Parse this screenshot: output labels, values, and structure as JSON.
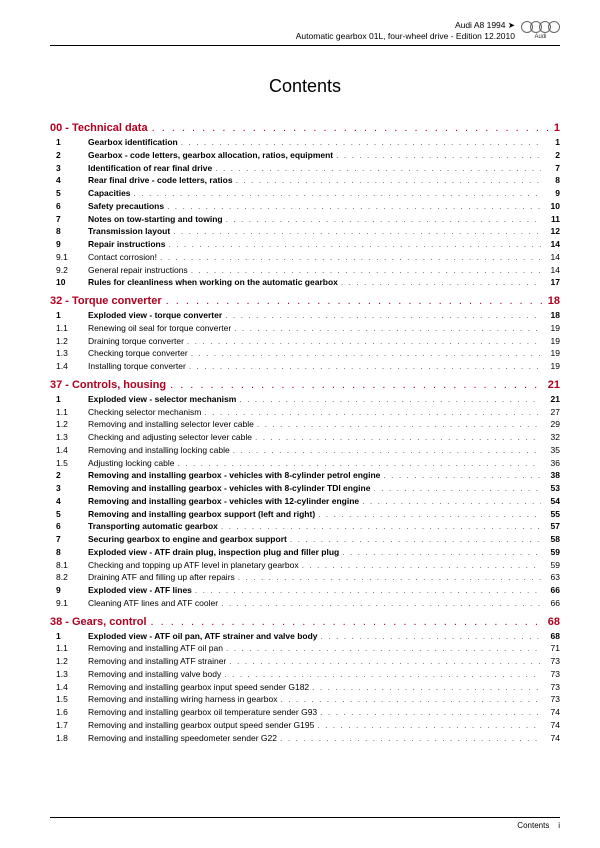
{
  "header": {
    "line1": "Audi A8 1994 ➤",
    "line2": "Automatic gearbox 01L, four-wheel drive - Edition 12.2010",
    "logo_text": "Audi"
  },
  "title": "Contents",
  "dots": ". . . . . . . . . . . . . . . . . . . . . . . . . . . . . . . . . . . . . . . . . . . . . . . . . . . . . . . . . . . . . . . . . . . . . . . . . . . . . . . . . . . . . . . . . . . . . . . . . . . . . . . . . . . . . . . .",
  "sections": [
    {
      "num": "00 -",
      "label": "Technical data",
      "page": "1",
      "color": "#b00020",
      "rows": [
        {
          "n": "1",
          "t": "Gearbox identification",
          "p": "1",
          "b": true
        },
        {
          "n": "2",
          "t": "Gearbox - code letters, gearbox allocation, ratios, equipment",
          "p": "2",
          "b": true
        },
        {
          "n": "3",
          "t": "Identification of rear final drive",
          "p": "7",
          "b": true
        },
        {
          "n": "4",
          "t": "Rear final drive - code letters, ratios",
          "p": "8",
          "b": true
        },
        {
          "n": "5",
          "t": "Capacities",
          "p": "9",
          "b": true
        },
        {
          "n": "6",
          "t": "Safety precautions",
          "p": "10",
          "b": true
        },
        {
          "n": "7",
          "t": "Notes on tow-starting and towing",
          "p": "11",
          "b": true
        },
        {
          "n": "8",
          "t": "Transmission layout",
          "p": "12",
          "b": true
        },
        {
          "n": "9",
          "t": "Repair instructions",
          "p": "14",
          "b": true
        },
        {
          "n": "9.1",
          "t": "Contact corrosion!",
          "p": "14",
          "b": false
        },
        {
          "n": "9.2",
          "t": "General repair instructions",
          "p": "14",
          "b": false
        },
        {
          "n": "10",
          "t": "Rules for cleanliness when working on the automatic gearbox",
          "p": "17",
          "b": true
        }
      ]
    },
    {
      "num": "32 -",
      "label": "Torque converter",
      "page": "18",
      "color": "#b00020",
      "rows": [
        {
          "n": "1",
          "t": "Exploded view - torque converter",
          "p": "18",
          "b": true
        },
        {
          "n": "1.1",
          "t": "Renewing oil seal for torque converter",
          "p": "19",
          "b": false
        },
        {
          "n": "1.2",
          "t": "Draining torque converter",
          "p": "19",
          "b": false
        },
        {
          "n": "1.3",
          "t": "Checking torque converter",
          "p": "19",
          "b": false
        },
        {
          "n": "1.4",
          "t": "Installing torque converter",
          "p": "19",
          "b": false
        }
      ]
    },
    {
      "num": "37 -",
      "label": "Controls, housing",
      "page": "21",
      "color": "#b00020",
      "rows": [
        {
          "n": "1",
          "t": "Exploded view - selector mechanism",
          "p": "21",
          "b": true
        },
        {
          "n": "1.1",
          "t": "Checking selector mechanism",
          "p": "27",
          "b": false
        },
        {
          "n": "1.2",
          "t": "Removing and installing selector lever cable",
          "p": "29",
          "b": false
        },
        {
          "n": "1.3",
          "t": "Checking and adjusting selector lever cable",
          "p": "32",
          "b": false
        },
        {
          "n": "1.4",
          "t": "Removing and installing locking cable",
          "p": "35",
          "b": false
        },
        {
          "n": "1.5",
          "t": "Adjusting locking cable",
          "p": "36",
          "b": false
        },
        {
          "n": "2",
          "t": "Removing and installing gearbox - vehicles with 8-cylinder petrol engine",
          "p": "38",
          "b": true
        },
        {
          "n": "3",
          "t": "Removing and installing gearbox - vehicles with 8-cylinder TDI engine",
          "p": "53",
          "b": true
        },
        {
          "n": "4",
          "t": "Removing and installing gearbox - vehicles with 12-cylinder engine",
          "p": "54",
          "b": true
        },
        {
          "n": "5",
          "t": "Removing and installing gearbox support (left and right)",
          "p": "55",
          "b": true
        },
        {
          "n": "6",
          "t": "Transporting automatic gearbox",
          "p": "57",
          "b": true
        },
        {
          "n": "7",
          "t": "Securing gearbox to engine and gearbox support",
          "p": "58",
          "b": true
        },
        {
          "n": "8",
          "t": "Exploded view - ATF drain plug, inspection plug and filler plug",
          "p": "59",
          "b": true
        },
        {
          "n": "8.1",
          "t": "Checking and topping up ATF level in planetary gearbox",
          "p": "59",
          "b": false
        },
        {
          "n": "8.2",
          "t": "Draining ATF and filling up after repairs",
          "p": "63",
          "b": false
        },
        {
          "n": "9",
          "t": "Exploded view - ATF lines",
          "p": "66",
          "b": true
        },
        {
          "n": "9.1",
          "t": "Cleaning ATF lines and ATF cooler",
          "p": "66",
          "b": false
        }
      ]
    },
    {
      "num": "38 -",
      "label": "Gears, control",
      "page": "68",
      "color": "#b00020",
      "rows": [
        {
          "n": "1",
          "t": "Exploded view - ATF oil pan, ATF strainer and valve body",
          "p": "68",
          "b": true
        },
        {
          "n": "1.1",
          "t": "Removing and installing ATF oil pan",
          "p": "71",
          "b": false
        },
        {
          "n": "1.2",
          "t": "Removing and installing ATF strainer",
          "p": "73",
          "b": false
        },
        {
          "n": "1.3",
          "t": "Removing and installing valve body",
          "p": "73",
          "b": false
        },
        {
          "n": "1.4",
          "t": "Removing and installing gearbox input speed sender G182",
          "p": "73",
          "b": false
        },
        {
          "n": "1.5",
          "t": "Removing and installing wiring harness in gearbox",
          "p": "73",
          "b": false
        },
        {
          "n": "1.6",
          "t": "Removing and installing gearbox oil temperature sender G93",
          "p": "74",
          "b": false
        },
        {
          "n": "1.7",
          "t": "Removing and installing gearbox output speed sender G195",
          "p": "74",
          "b": false
        },
        {
          "n": "1.8",
          "t": "Removing and installing speedometer sender G22",
          "p": "74",
          "b": false
        }
      ]
    }
  ],
  "footer": {
    "label": "Contents",
    "page": "i"
  }
}
